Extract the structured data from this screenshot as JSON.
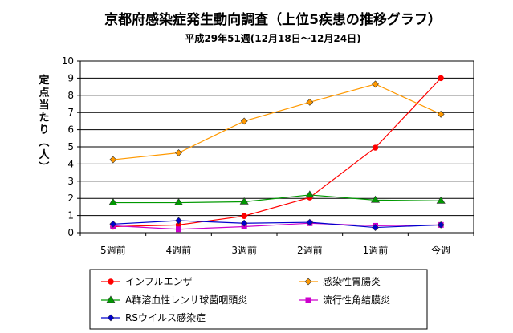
{
  "chart_data": {
    "type": "line",
    "title": "京都府感染症発生動向調査（上位5疾患の推移グラフ）",
    "subtitle": "平成29年51週(12月18日～12月24日)",
    "ylabel": "定点当たり（人）",
    "xlabel": "",
    "ylim": [
      0,
      10
    ],
    "yticks": [
      "0",
      "1",
      "2",
      "3",
      "4",
      "5",
      "6",
      "7",
      "8",
      "9",
      "10"
    ],
    "grid": true,
    "legend_position": "bottom",
    "categories": [
      "5週前",
      "4週前",
      "3週前",
      "2週前",
      "1週前",
      "今週"
    ],
    "series": [
      {
        "name": "インフルエンザ",
        "color": "#ff0000",
        "marker": "circle",
        "values": [
          0.35,
          0.45,
          0.97,
          2.05,
          4.95,
          9.0
        ]
      },
      {
        "name": "感染性胃腸炎",
        "color": "#ff9900",
        "marker": "diamond",
        "values": [
          4.25,
          4.65,
          6.5,
          7.6,
          8.65,
          6.9
        ]
      },
      {
        "name": "A群溶血性レンサ球菌咽頭炎",
        "color": "#009900",
        "marker": "triangle",
        "values": [
          1.75,
          1.75,
          1.8,
          2.2,
          1.9,
          1.85
        ]
      },
      {
        "name": "流行性角結膜炎",
        "color": "#cc00cc",
        "marker": "square",
        "values": [
          0.4,
          0.2,
          0.35,
          0.55,
          0.4,
          0.45
        ]
      },
      {
        "name": "RSウイルス感染症",
        "color": "#0000cc",
        "marker": "diamond",
        "values": [
          0.5,
          0.7,
          0.55,
          0.6,
          0.3,
          0.45
        ]
      }
    ]
  }
}
